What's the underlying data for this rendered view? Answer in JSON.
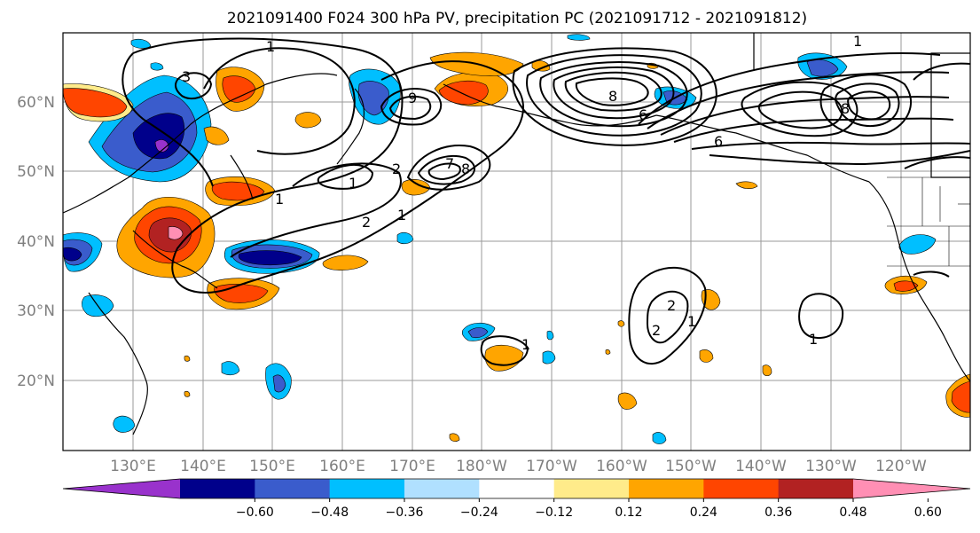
{
  "title": "2021091400 F024 300 hPa PV, precipitation PC (2021091712 - 2021091812)",
  "lon_ticks": [
    "130°E",
    "140°E",
    "150°E",
    "160°E",
    "170°E",
    "180°W",
    "170°W",
    "160°W",
    "150°W",
    "140°W",
    "130°W",
    "120°W"
  ],
  "lat_ticks": [
    "60°N",
    "50°N",
    "40°N",
    "30°N",
    "20°N"
  ],
  "colorbar": {
    "ticks": [
      "−0.60",
      "−0.48",
      "−0.36",
      "−0.24",
      "−0.12",
      "0.12",
      "0.24",
      "0.36",
      "0.48",
      "0.60"
    ],
    "colors": [
      "#9932cc",
      "#00008b",
      "#3a5ccc",
      "#00bfff",
      "#b0e0ff",
      "#ffffff",
      "#ffeb8a",
      "#ffa500",
      "#ff4500",
      "#b22222",
      "#ff8fb4"
    ]
  },
  "contour_labels": [
    "1",
    "3",
    "1",
    "1",
    "2",
    "1",
    "2",
    "8",
    "8",
    "9",
    "6",
    "6",
    "8",
    "1",
    "7",
    "2",
    "2",
    "1",
    "1",
    "1"
  ]
}
